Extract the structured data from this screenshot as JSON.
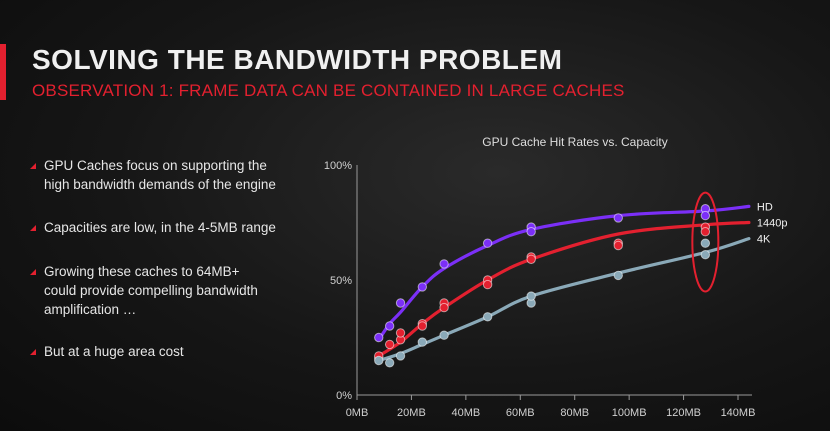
{
  "slide": {
    "title": "SOLVING THE BANDWIDTH PROBLEM",
    "subtitle": "OBSERVATION 1: FRAME DATA CAN BE CONTAINED IN LARGE CACHES",
    "accent_color": "#e3202f",
    "bullets": [
      {
        "line1": "GPU Caches focus on supporting the",
        "line2": "high bandwidth demands of the engine"
      },
      {
        "line1": "Capacities are low, in the 4-5MB range"
      },
      {
        "line1": "Growing these caches to 64MB+",
        "line2": "could provide compelling bandwidth",
        "line3": "amplification …"
      },
      {
        "line1": "But at a huge area cost"
      }
    ]
  },
  "chart_data": {
    "type": "line",
    "title": "GPU Cache Hit Rates vs. Capacity",
    "xlabel": "",
    "ylabel": "",
    "xlim": [
      0,
      140
    ],
    "ylim": [
      0,
      100
    ],
    "x_ticks": [
      "0MB",
      "20MB",
      "40MB",
      "60MB",
      "80MB",
      "100MB",
      "120MB",
      "140MB"
    ],
    "x_tick_values": [
      0,
      20,
      40,
      60,
      80,
      100,
      120,
      140
    ],
    "y_ticks": [
      "0%",
      "50%",
      "100%"
    ],
    "y_tick_values": [
      0,
      50,
      100
    ],
    "legend_placement": "right, at end of each curve",
    "series": [
      {
        "name": "HD",
        "color": "#7b2ff7",
        "curve": [
          [
            8,
            24
          ],
          [
            12,
            31
          ],
          [
            16,
            36
          ],
          [
            24,
            47
          ],
          [
            32,
            55
          ],
          [
            48,
            65
          ],
          [
            64,
            72
          ],
          [
            96,
            78
          ],
          [
            128,
            80
          ],
          [
            144,
            82
          ]
        ],
        "points": [
          [
            8,
            25
          ],
          [
            12,
            30
          ],
          [
            16,
            40
          ],
          [
            24,
            47
          ],
          [
            32,
            57
          ],
          [
            48,
            66
          ],
          [
            64,
            73
          ],
          [
            64,
            71
          ],
          [
            96,
            77
          ],
          [
            128,
            81
          ],
          [
            128,
            78
          ]
        ]
      },
      {
        "name": "1440p",
        "color": "#e3202f",
        "curve": [
          [
            8,
            17
          ],
          [
            16,
            23
          ],
          [
            24,
            31
          ],
          [
            32,
            38
          ],
          [
            48,
            50
          ],
          [
            64,
            59
          ],
          [
            96,
            70
          ],
          [
            128,
            74
          ],
          [
            144,
            75
          ]
        ],
        "points": [
          [
            8,
            16
          ],
          [
            8,
            17
          ],
          [
            12,
            22
          ],
          [
            16,
            24
          ],
          [
            16,
            27
          ],
          [
            24,
            31
          ],
          [
            24,
            30
          ],
          [
            32,
            40
          ],
          [
            32,
            38
          ],
          [
            48,
            50
          ],
          [
            48,
            48
          ],
          [
            64,
            60
          ],
          [
            64,
            59
          ],
          [
            96,
            66
          ],
          [
            96,
            65
          ],
          [
            128,
            73
          ],
          [
            128,
            71
          ]
        ]
      },
      {
        "name": "4K",
        "color": "#8aa9b8",
        "curve": [
          [
            8,
            15
          ],
          [
            16,
            18
          ],
          [
            24,
            22
          ],
          [
            32,
            26
          ],
          [
            48,
            34
          ],
          [
            64,
            43
          ],
          [
            96,
            53
          ],
          [
            128,
            62
          ],
          [
            144,
            68
          ]
        ],
        "points": [
          [
            8,
            15
          ],
          [
            12,
            14
          ],
          [
            16,
            17
          ],
          [
            24,
            23
          ],
          [
            32,
            26
          ],
          [
            48,
            34
          ],
          [
            64,
            40
          ],
          [
            64,
            43
          ],
          [
            96,
            52
          ],
          [
            128,
            61
          ],
          [
            128,
            66
          ]
        ]
      }
    ],
    "annotations": [
      {
        "type": "ellipse-highlight",
        "color": "#e3202f",
        "x": 128,
        "y_range": [
          45,
          88
        ]
      }
    ]
  }
}
